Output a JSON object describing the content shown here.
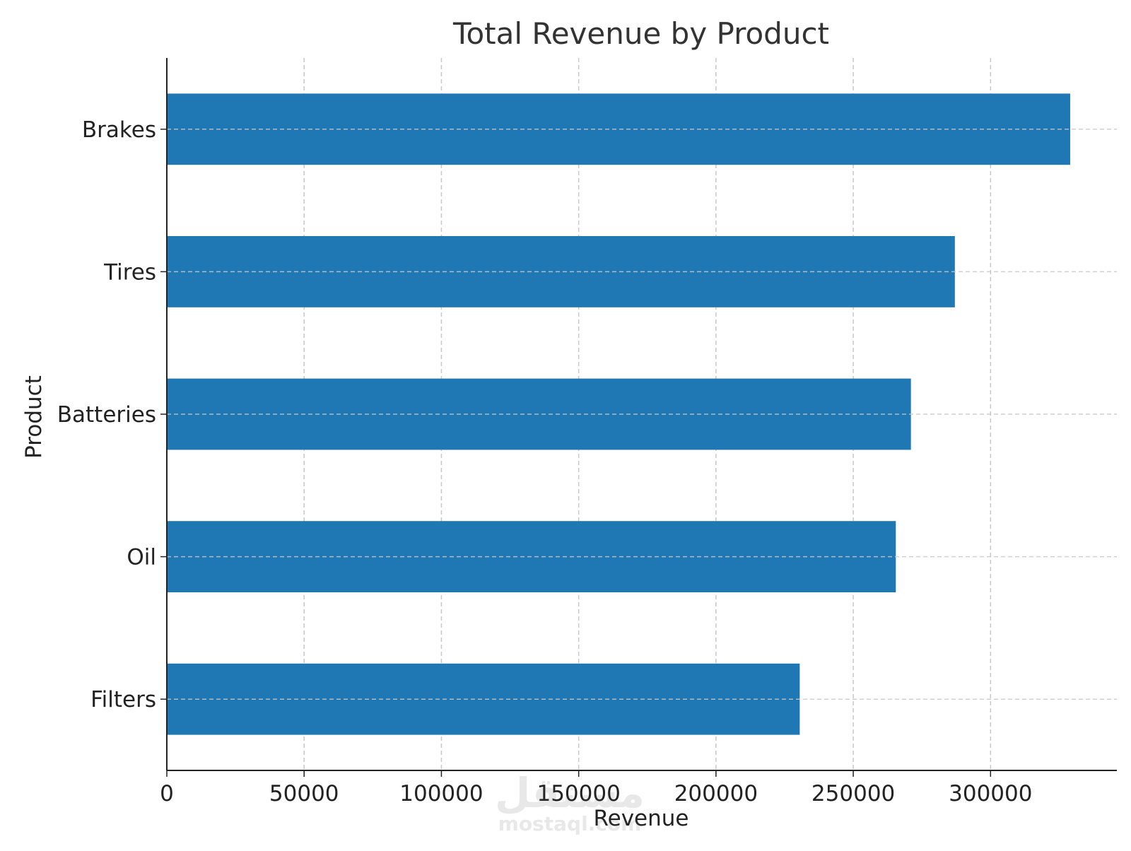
{
  "chart_data": {
    "type": "bar",
    "orientation": "horizontal",
    "title": "Total Revenue by Product",
    "xlabel": "Revenue",
    "ylabel": "Product",
    "categories": [
      "Brakes",
      "Tires",
      "Batteries",
      "Oil",
      "Filters"
    ],
    "values": [
      329000,
      287000,
      271000,
      265500,
      230500
    ],
    "xlim": [
      0,
      346000
    ],
    "xticks": [
      0,
      50000,
      100000,
      150000,
      200000,
      250000,
      300000
    ],
    "grid": true,
    "bar_color": "#1f77b4",
    "watermark": {
      "arabic": "مستقل",
      "latin": "mostaql.com"
    }
  }
}
